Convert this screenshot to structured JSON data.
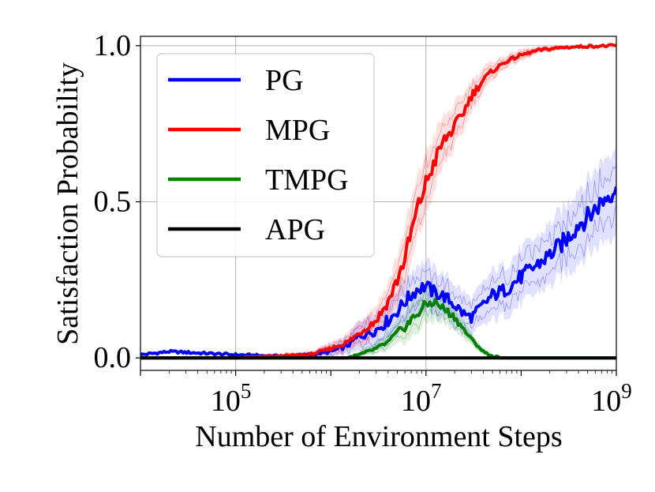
{
  "chart_data": {
    "type": "line",
    "title": "",
    "xlabel": "Number of Environment Steps",
    "ylabel": "Satisfaction Probability",
    "xscale": "log",
    "xlim": [
      10000,
      1000000000
    ],
    "ylim": [
      -0.04,
      1.03
    ],
    "grid": true,
    "legend_placement": "top-left",
    "x_ticks": [
      {
        "value": 100000,
        "base": "10",
        "exp": "5"
      },
      {
        "value": 10000000,
        "base": "10",
        "exp": "7"
      },
      {
        "value": 1000000000,
        "base": "10",
        "exp": "9"
      }
    ],
    "y_ticks": [
      {
        "value": 0.0,
        "label": "0.0"
      },
      {
        "value": 0.5,
        "label": "0.5"
      },
      {
        "value": 1.0,
        "label": "1.0"
      }
    ],
    "series": [
      {
        "name": "PG",
        "color": "#0000ff",
        "x": [
          10000,
          20000,
          100000,
          300000,
          600000,
          1000000,
          1500000,
          2000000,
          3000000,
          4000000,
          5000000,
          6000000,
          7000000,
          8000000,
          10000000,
          12000000,
          15000000,
          20000000,
          25000000,
          30000000,
          40000000,
          50000000,
          70000000,
          100000000,
          150000000,
          200000000,
          300000000,
          400000000,
          500000000,
          700000000,
          1000000000
        ],
        "values": [
          0.01,
          0.02,
          0.01,
          0.005,
          0.01,
          0.02,
          0.04,
          0.07,
          0.09,
          0.12,
          0.15,
          0.18,
          0.2,
          0.22,
          0.23,
          0.21,
          0.2,
          0.17,
          0.14,
          0.13,
          0.17,
          0.2,
          0.22,
          0.26,
          0.3,
          0.33,
          0.38,
          0.43,
          0.45,
          0.5,
          0.55
        ],
        "band": [
          0.0,
          0.0,
          0.0,
          0.0,
          0.01,
          0.02,
          0.03,
          0.05,
          0.06,
          0.07,
          0.07,
          0.08,
          0.08,
          0.08,
          0.08,
          0.08,
          0.07,
          0.07,
          0.07,
          0.06,
          0.07,
          0.08,
          0.08,
          0.09,
          0.09,
          0.1,
          0.11,
          0.12,
          0.12,
          0.13,
          0.14
        ]
      },
      {
        "name": "MPG",
        "color": "#ff0000",
        "x": [
          10000,
          100000,
          300000,
          600000,
          1000000,
          1500000,
          2000000,
          3000000,
          4000000,
          5000000,
          6000000,
          7000000,
          8000000,
          10000000,
          12000000,
          15000000,
          20000000,
          25000000,
          30000000,
          40000000,
          50000000,
          70000000,
          100000000,
          150000000,
          200000000,
          300000000,
          500000000,
          1000000000
        ],
        "values": [
          0.0,
          0.0,
          0.005,
          0.01,
          0.03,
          0.05,
          0.08,
          0.12,
          0.18,
          0.25,
          0.32,
          0.4,
          0.47,
          0.56,
          0.62,
          0.69,
          0.74,
          0.79,
          0.84,
          0.89,
          0.92,
          0.95,
          0.97,
          0.985,
          0.99,
          0.995,
          0.998,
          1.0
        ],
        "band": [
          0.0,
          0.0,
          0.01,
          0.01,
          0.02,
          0.03,
          0.04,
          0.05,
          0.06,
          0.08,
          0.1,
          0.1,
          0.1,
          0.1,
          0.09,
          0.08,
          0.07,
          0.06,
          0.05,
          0.04,
          0.03,
          0.02,
          0.02,
          0.01,
          0.01,
          0.005,
          0.003,
          0.0
        ]
      },
      {
        "name": "TMPG",
        "color": "#008000",
        "x": [
          10000,
          1500000,
          2000000,
          3000000,
          4000000,
          5000000,
          6000000,
          7000000,
          8000000,
          10000000,
          12000000,
          15000000,
          20000000,
          25000000,
          30000000,
          40000000,
          50000000,
          60000000,
          100000000,
          1000000000
        ],
        "values": [
          0.0,
          0.0,
          0.01,
          0.03,
          0.05,
          0.08,
          0.1,
          0.12,
          0.14,
          0.17,
          0.18,
          0.16,
          0.13,
          0.09,
          0.06,
          0.02,
          0.005,
          0.0,
          0.0,
          0.0
        ],
        "band": [
          0.0,
          0.0,
          0.01,
          0.02,
          0.03,
          0.04,
          0.05,
          0.06,
          0.06,
          0.06,
          0.06,
          0.05,
          0.04,
          0.03,
          0.02,
          0.01,
          0.005,
          0.0,
          0.0,
          0.0
        ]
      },
      {
        "name": "APG",
        "color": "#000000",
        "x": [
          10000,
          1000000000
        ],
        "values": [
          0.0,
          0.0
        ],
        "band": [
          0.0,
          0.0
        ]
      }
    ]
  }
}
